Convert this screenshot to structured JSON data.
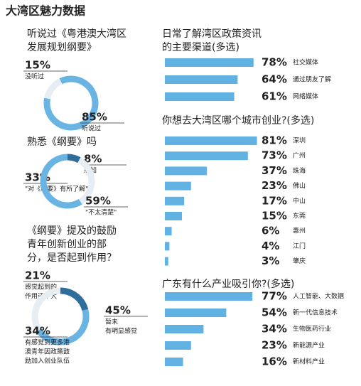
{
  "title": "大湾区魅力数据",
  "chart_data": [
    {
      "type": "pie",
      "title": [
        "听说过《粤港澳大湾区",
        "发展规划纲要》"
      ],
      "values": [
        15,
        85
      ],
      "value_labels": [
        "15%",
        "85%"
      ],
      "labels": [
        [
          "没听过"
        ],
        [
          "听说过"
        ]
      ],
      "colors": [
        "#e6eef4",
        "#6ab4e4"
      ]
    },
    {
      "type": "pie",
      "title": [
        "熟悉《纲要》吗"
      ],
      "values": [
        8,
        33,
        59
      ],
      "value_labels": [
        "8%",
        "33%",
        "59%"
      ],
      "labels": [
        [
          "熟知"
        ],
        [
          "\"对《纲要》有所了解\""
        ],
        [
          "\"不太清楚\""
        ]
      ],
      "colors": [
        "#2f6e9c",
        "#e6eef4",
        "#6ab4e4"
      ]
    },
    {
      "type": "pie",
      "title": [
        "《纲要》提及的鼓励",
        "青年创新创业的部",
        "分，是否起到作用？"
      ],
      "values": [
        21,
        45,
        34
      ],
      "value_labels": [
        "21%",
        "45%",
        "34%"
      ],
      "labels": [
        [
          "感觉起到的",
          "作用还不大"
        ],
        [
          "暂未",
          "有明显感觉"
        ],
        [
          "有感觉到更多港",
          "澳青年因政策鼓",
          "励加入创业队伍"
        ]
      ],
      "colors": [
        "#2f6e9c",
        "#6ab4e4",
        "#e6eef4"
      ]
    },
    {
      "type": "bar",
      "title": [
        "日常了解湾区政策资讯",
        "的主要渠道(多选)"
      ],
      "categories": [
        "社交媒体",
        "通过朋友了解",
        "网络媒体"
      ],
      "values": [
        78,
        64,
        61
      ],
      "value_labels": [
        "78%",
        "64%",
        "61%"
      ],
      "color": "#62b1e3",
      "xlim": [
        0,
        100
      ]
    },
    {
      "type": "bar",
      "title": [
        "你想去大湾区哪个城市创业?(多选)"
      ],
      "categories": [
        "深圳",
        "广州",
        "珠海",
        "佛山",
        "中山",
        "东莞",
        "惠州",
        "江门",
        "肇庆"
      ],
      "values": [
        81,
        73,
        37,
        23,
        17,
        15,
        6,
        4,
        3
      ],
      "value_labels": [
        "81%",
        "73%",
        "37%",
        "23%",
        "17%",
        "15%",
        "6%",
        "4%",
        "3%"
      ],
      "color": "#62b1e3",
      "xlim": [
        0,
        100
      ]
    },
    {
      "type": "bar",
      "title": [
        "广东有什么产业吸引你?(多选)"
      ],
      "categories": [
        "人工智能、大数据",
        "新一代信息技术",
        "生物医药行业",
        "新能源产业",
        "新材料产业"
      ],
      "values": [
        77,
        54,
        34,
        23,
        16
      ],
      "value_labels": [
        "77%",
        "54%",
        "34%",
        "23%",
        "16%"
      ],
      "color": "#62b1e3",
      "xlim": [
        0,
        100
      ]
    }
  ]
}
